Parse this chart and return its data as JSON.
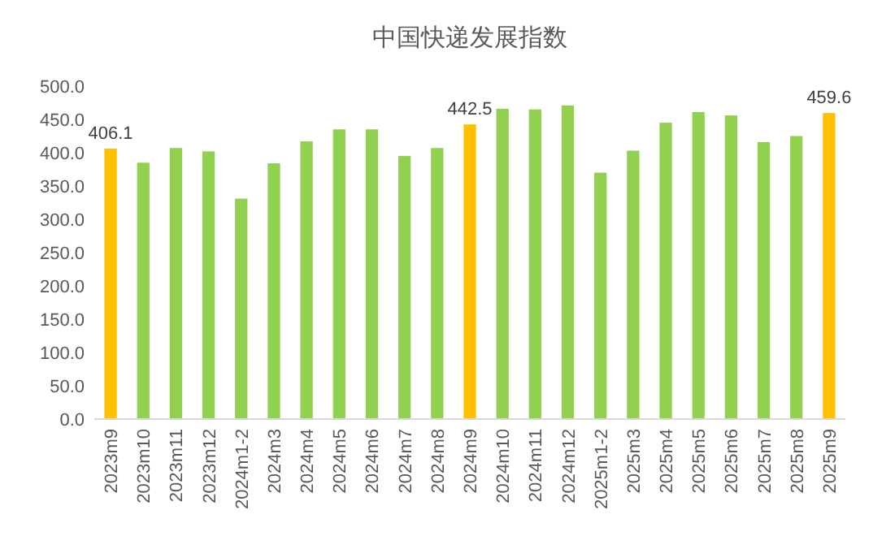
{
  "chart_data": {
    "type": "bar",
    "title": "中国快递发展指数",
    "categories": [
      "2023m9",
      "2023m10",
      "2023m11",
      "2023m12",
      "2024m1-2",
      "2024m3",
      "2024m4",
      "2024m5",
      "2024m6",
      "2024m7",
      "2024m8",
      "2024m9",
      "2024m10",
      "2024m11",
      "2024m12",
      "2025m1-2",
      "2025m3",
      "2025m4",
      "2025m5",
      "2025m6",
      "2025m7",
      "2025m8",
      "2025m9"
    ],
    "values": [
      406.1,
      385,
      407,
      402,
      331,
      384,
      417,
      435,
      435,
      395,
      407,
      442.5,
      466,
      465,
      471,
      370,
      403,
      445,
      461,
      456,
      416,
      425,
      459.6
    ],
    "colors": [
      "#ffc000",
      "#92d050",
      "#92d050",
      "#92d050",
      "#92d050",
      "#92d050",
      "#92d050",
      "#92d050",
      "#92d050",
      "#92d050",
      "#92d050",
      "#ffc000",
      "#92d050",
      "#92d050",
      "#92d050",
      "#92d050",
      "#92d050",
      "#92d050",
      "#92d050",
      "#92d050",
      "#92d050",
      "#92d050",
      "#ffc000"
    ],
    "value_labels": [
      "406.1",
      null,
      null,
      null,
      null,
      null,
      null,
      null,
      null,
      null,
      null,
      "442.5",
      null,
      null,
      null,
      null,
      null,
      null,
      null,
      null,
      null,
      null,
      "459.6"
    ],
    "ylim": [
      0,
      500
    ],
    "yticks": [
      {
        "value": 0,
        "label": "0.0"
      },
      {
        "value": 50,
        "label": "50.0"
      },
      {
        "value": 100,
        "label": "100.0"
      },
      {
        "value": 150,
        "label": "150.0"
      },
      {
        "value": 200,
        "label": "200.0"
      },
      {
        "value": 250,
        "label": "250.0"
      },
      {
        "value": 300,
        "label": "300.0"
      },
      {
        "value": 350,
        "label": "350.0"
      },
      {
        "value": 400,
        "label": "400.0"
      },
      {
        "value": 450,
        "label": "450.0"
      },
      {
        "value": 500,
        "label": "500.0"
      }
    ],
    "grid": false
  }
}
